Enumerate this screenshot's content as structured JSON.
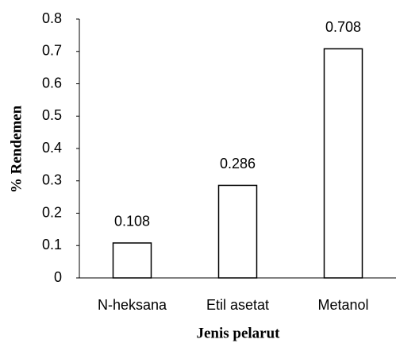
{
  "chart_data": {
    "type": "bar",
    "x_label": "Jenis pelarut",
    "y_label": "% Rendemen",
    "categories": [
      "N-heksana",
      "Etil asetat",
      "Metanol"
    ],
    "values": [
      0.108,
      0.286,
      0.708
    ],
    "color": "#ffffff",
    "edge_color": "#000000",
    "ylim": [
      0,
      0.8
    ],
    "yticks": [
      0,
      0.1,
      0.2,
      0.3,
      0.4,
      0.5,
      0.6,
      0.7,
      0.8
    ],
    "grid": false
  }
}
